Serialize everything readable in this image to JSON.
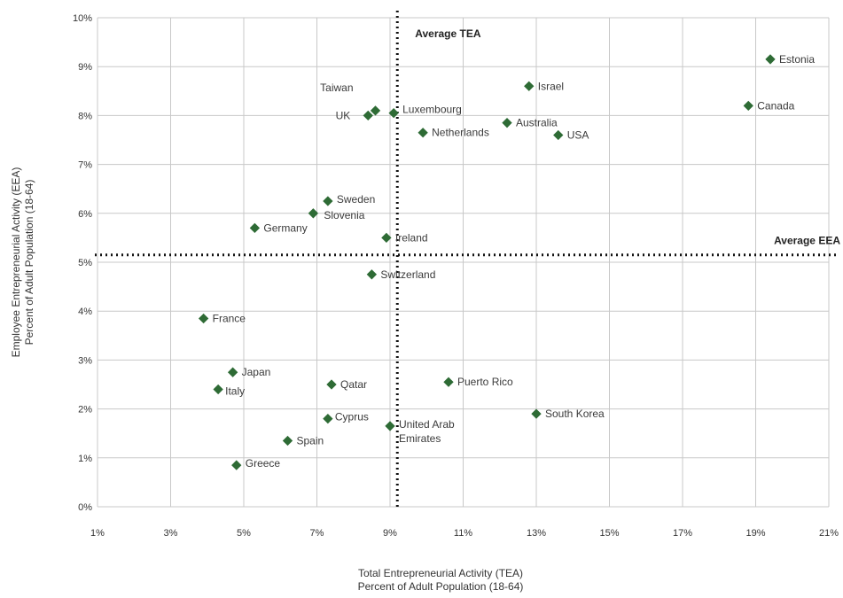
{
  "chart_data": {
    "type": "scatter",
    "title": "",
    "xlabel": [
      "Total Entrepreneurial Activity (TEA)",
      "Percent of Adult Population (18-64)"
    ],
    "ylabel": [
      "Employee Entrepreneurial Activity (EEA)",
      "Percent of Adult Population (18-64)"
    ],
    "xlim": [
      1,
      21
    ],
    "ylim": [
      0,
      10
    ],
    "x_ticks": [
      1,
      3,
      5,
      7,
      9,
      11,
      13,
      15,
      17,
      19,
      21
    ],
    "x_tick_labels": [
      "1%",
      "3%",
      "5%",
      "7%",
      "9%",
      "11%",
      "13%",
      "15%",
      "17%",
      "19%",
      "21%"
    ],
    "y_ticks": [
      0,
      1,
      2,
      3,
      4,
      5,
      6,
      7,
      8,
      9,
      10
    ],
    "y_tick_labels": [
      "0%",
      "1%",
      "2%",
      "3%",
      "4%",
      "5%",
      "6%",
      "7%",
      "8%",
      "9%",
      "10%"
    ],
    "grid": true,
    "marker_color": "#2e6b35",
    "reference_lines": [
      {
        "orientation": "vertical",
        "value": 9.2,
        "label": "Average TEA"
      },
      {
        "orientation": "horizontal",
        "value": 5.15,
        "label": "Average EEA"
      }
    ],
    "points": [
      {
        "label": "Estonia",
        "x": 19.4,
        "y": 9.15
      },
      {
        "label": "Israel",
        "x": 12.8,
        "y": 8.6
      },
      {
        "label": "Canada",
        "x": 18.8,
        "y": 8.2
      },
      {
        "label": "Taiwan",
        "x": 8.6,
        "y": 8.1
      },
      {
        "label": "UK",
        "x": 8.4,
        "y": 8.0
      },
      {
        "label": "Luxembourg",
        "x": 9.1,
        "y": 8.05
      },
      {
        "label": "Australia",
        "x": 12.2,
        "y": 7.85
      },
      {
        "label": "Netherlands",
        "x": 9.9,
        "y": 7.65
      },
      {
        "label": "USA",
        "x": 13.6,
        "y": 7.6
      },
      {
        "label": "Sweden",
        "x": 7.3,
        "y": 6.25
      },
      {
        "label": "Slovenia",
        "x": 6.9,
        "y": 6.0
      },
      {
        "label": "Germany",
        "x": 5.3,
        "y": 5.7
      },
      {
        "label": "Ireland",
        "x": 8.9,
        "y": 5.5
      },
      {
        "label": "Switzerland",
        "x": 8.5,
        "y": 4.75
      },
      {
        "label": "France",
        "x": 3.9,
        "y": 3.85
      },
      {
        "label": "Japan",
        "x": 4.7,
        "y": 2.75
      },
      {
        "label": "Qatar",
        "x": 7.4,
        "y": 2.5
      },
      {
        "label": "Puerto Rico",
        "x": 10.6,
        "y": 2.55
      },
      {
        "label": "Italy",
        "x": 4.3,
        "y": 2.4
      },
      {
        "label": "South Korea",
        "x": 13.0,
        "y": 1.9
      },
      {
        "label": "Cyprus",
        "x": 7.3,
        "y": 1.8
      },
      {
        "label": "United Arab Emirates",
        "x": 9.0,
        "y": 1.65
      },
      {
        "label": "Spain",
        "x": 6.2,
        "y": 1.35
      },
      {
        "label": "Greece",
        "x": 4.8,
        "y": 0.85
      }
    ]
  }
}
